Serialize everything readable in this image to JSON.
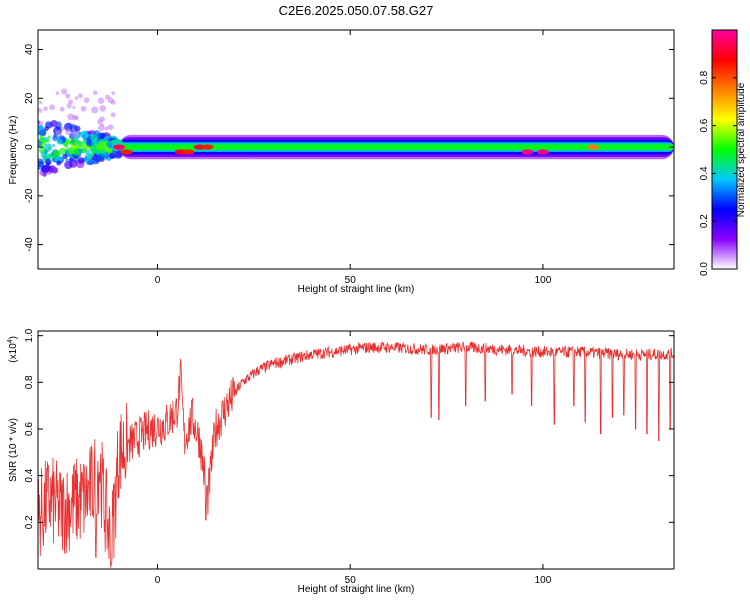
{
  "page_title": "C2E6.2025.050.07.58.G27",
  "chart_data": [
    {
      "type": "heatmap",
      "xlabel": "Height of straight line (km)",
      "ylabel": "Frequency (Hz)",
      "xlim": [
        -31,
        134
      ],
      "ylim": [
        -50,
        48
      ],
      "xticks": [
        0,
        50,
        100
      ],
      "xtick_labels": [
        "0",
        "50",
        "100"
      ],
      "yticks": [
        -40,
        -20,
        0,
        20,
        40
      ],
      "ytick_labels": [
        "-40",
        "-20",
        "0",
        "20",
        "40"
      ],
      "grid": false,
      "band_center_hz": 0,
      "band_halfwidth_hz": 3,
      "peaks": [
        {
          "x": -10,
          "y": 0,
          "amplitude": 0.95
        },
        {
          "x": -8,
          "y": -2,
          "amplitude": 0.85
        },
        {
          "x": 6,
          "y": -2,
          "amplitude": 0.9
        },
        {
          "x": 8,
          "y": -2,
          "amplitude": 0.85
        },
        {
          "x": 11,
          "y": 0,
          "amplitude": 0.9
        },
        {
          "x": 13,
          "y": 0,
          "amplitude": 0.85
        },
        {
          "x": 96,
          "y": -2,
          "amplitude": 0.98
        },
        {
          "x": 100,
          "y": -2,
          "amplitude": 0.98
        },
        {
          "x": 113,
          "y": 0,
          "amplitude": 0.75
        }
      ],
      "colorbar": {
        "label": "Normalized spectral amplitude",
        "ticks": [
          0.0,
          0.2,
          0.4,
          0.6,
          0.8
        ],
        "tick_labels": [
          "0.0",
          "0.2",
          "0.4",
          "0.6",
          "0.8"
        ],
        "colors": [
          "#ffffff",
          "#8a00ff",
          "#0000ff",
          "#00c8ff",
          "#00ff00",
          "#ffff00",
          "#ff8000",
          "#ff0000",
          "#ff00a0"
        ]
      }
    },
    {
      "type": "line",
      "xlabel": "Height of straight line (km)",
      "ylabel": "SNR (10 * v/v)",
      "multiplier_label": "(x10",
      "multiplier_exponent": "4",
      "xlim": [
        -31,
        134
      ],
      "ylim": [
        0,
        1.02
      ],
      "xticks": [
        0,
        50,
        100
      ],
      "xtick_labels": [
        "0",
        "50",
        "100"
      ],
      "yticks": [
        0.2,
        0.4,
        0.6,
        0.8,
        1.0
      ],
      "ytick_labels": [
        "0.2",
        "0.4",
        "0.6",
        "0.8",
        "1.0"
      ],
      "grid": false,
      "series": [
        {
          "color": "#e83030",
          "x": [
            -31,
            -28,
            -25,
            -22,
            -19,
            -17,
            -15,
            -14,
            -12,
            -10,
            -6,
            -2,
            2,
            5,
            6,
            7,
            9,
            11,
            13,
            15,
            18,
            22,
            26,
            30,
            35,
            40,
            45,
            50,
            55,
            60,
            70,
            80,
            90,
            100,
            110,
            120,
            134
          ],
          "values": [
            0.22,
            0.3,
            0.25,
            0.28,
            0.3,
            0.35,
            0.45,
            0.3,
            0.1,
            0.5,
            0.55,
            0.6,
            0.62,
            0.68,
            0.82,
            0.55,
            0.65,
            0.55,
            0.3,
            0.6,
            0.7,
            0.8,
            0.85,
            0.88,
            0.9,
            0.92,
            0.93,
            0.94,
            0.95,
            0.95,
            0.94,
            0.95,
            0.94,
            0.93,
            0.93,
            0.92,
            0.92
          ]
        }
      ],
      "dips": [
        {
          "x": -12,
          "y": 0.02
        },
        {
          "x": -16,
          "y": 0.05
        },
        {
          "x": 12.5,
          "y": 0.21
        },
        {
          "x": 71,
          "y": 0.65
        },
        {
          "x": 73,
          "y": 0.64
        },
        {
          "x": 80,
          "y": 0.7
        },
        {
          "x": 85,
          "y": 0.72
        },
        {
          "x": 92,
          "y": 0.75
        },
        {
          "x": 97,
          "y": 0.7
        },
        {
          "x": 103,
          "y": 0.62
        },
        {
          "x": 108,
          "y": 0.7
        },
        {
          "x": 111,
          "y": 0.63
        },
        {
          "x": 115,
          "y": 0.58
        },
        {
          "x": 118,
          "y": 0.65
        },
        {
          "x": 121,
          "y": 0.66
        },
        {
          "x": 124,
          "y": 0.6
        },
        {
          "x": 127,
          "y": 0.58
        },
        {
          "x": 130,
          "y": 0.55
        },
        {
          "x": 133,
          "y": 0.6
        }
      ]
    }
  ]
}
